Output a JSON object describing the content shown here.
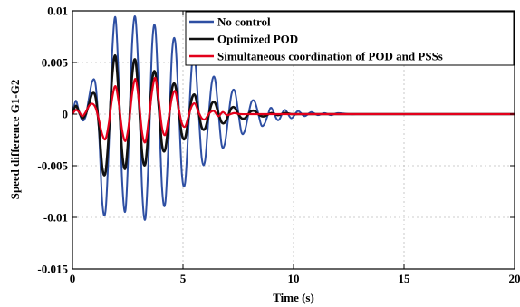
{
  "chart_data": {
    "type": "line",
    "title": "",
    "xlabel": "Time (s)",
    "ylabel": "Speed difference G1-G2",
    "xlim": [
      0,
      20
    ],
    "ylim": [
      -0.015,
      0.01
    ],
    "x_ticks": [
      0,
      5,
      10,
      15,
      20
    ],
    "x_tick_labels": [
      "0",
      "5",
      "10",
      "15",
      "20"
    ],
    "y_ticks": [
      0.01,
      0.005,
      0,
      -0.005,
      -0.01,
      -0.015
    ],
    "y_tick_labels": [
      "0.01",
      "0.005",
      "0",
      "-0.005",
      "-0.01",
      "-0.015"
    ],
    "grid": true,
    "legend_position": "top-right",
    "series": [
      {
        "name": "No control",
        "color": "#2e4fa3",
        "x": [
          0.0,
          0.15,
          0.3,
          0.45,
          0.6,
          0.75,
          0.9,
          1.05,
          1.2,
          1.35,
          1.5,
          1.65,
          1.8,
          1.95,
          2.1,
          2.25,
          2.4,
          2.55,
          2.7,
          2.85,
          3.0,
          3.15,
          3.3,
          3.45,
          3.6,
          3.75,
          3.9,
          4.05,
          4.2,
          4.35,
          4.5,
          4.65,
          4.8,
          4.95,
          5.1,
          5.25,
          5.4,
          5.55,
          5.7,
          5.85,
          6.0,
          6.15,
          6.3,
          6.45,
          6.6,
          6.75,
          6.9,
          7.05,
          7.2,
          7.35,
          7.5,
          7.65,
          7.8,
          7.95,
          8.1,
          8.25,
          8.4,
          8.55,
          8.7,
          8.85,
          9.0,
          9.3,
          9.6,
          9.9,
          10.2,
          10.5,
          10.8,
          11.1,
          11.4,
          11.7,
          12.0,
          12.5,
          13.0,
          13.5,
          14.0,
          15.0,
          16.0,
          17.0,
          18.0,
          19.0,
          20.0
        ],
        "values": [
          0,
          0.0013,
          0.0002,
          -0.0006,
          -0.0002,
          0.0016,
          0.0032,
          0.0028,
          -0.0017,
          -0.0086,
          -0.0093,
          -0.0028,
          0.0061,
          0.0093,
          0.0028,
          -0.0066,
          -0.0093,
          -0.0025,
          0.0069,
          0.0093,
          0.0032,
          -0.0073,
          -0.0101,
          -0.0038,
          0.0065,
          0.0083,
          0.0014,
          -0.0071,
          -0.0086,
          -0.0025,
          0.0058,
          0.007,
          0.0012,
          -0.0058,
          -0.0066,
          -0.0012,
          0.0047,
          0.0052,
          0.0005,
          -0.0043,
          -0.0045,
          -0.0005,
          0.003,
          0.0034,
          0.0003,
          -0.003,
          -0.0028,
          -0.0003,
          0.002,
          0.0022,
          0.0002,
          -0.0018,
          -0.0016,
          -0.0001,
          0.0012,
          0.0012,
          0.0001,
          -0.0011,
          -0.0009,
          0.0,
          0.0006,
          -0.0006,
          0.0004,
          -0.0004,
          0.0003,
          -0.0002,
          0.0002,
          -0.0001,
          0.0001,
          -0.0001,
          0.0001,
          0.0,
          0.0,
          0.0,
          0.0,
          0.0,
          0.0,
          0.0,
          0.0,
          0.0,
          0.0
        ]
      },
      {
        "name": "Optimized POD",
        "color": "#111111",
        "x": [
          0.0,
          0.15,
          0.3,
          0.45,
          0.6,
          0.75,
          0.9,
          1.05,
          1.2,
          1.35,
          1.5,
          1.65,
          1.8,
          1.95,
          2.1,
          2.25,
          2.4,
          2.55,
          2.7,
          2.85,
          3.0,
          3.15,
          3.3,
          3.45,
          3.6,
          3.75,
          3.9,
          4.05,
          4.2,
          4.35,
          4.5,
          4.65,
          4.8,
          4.95,
          5.1,
          5.25,
          5.4,
          5.55,
          5.7,
          5.85,
          6.0,
          6.15,
          6.3,
          6.45,
          6.6,
          6.75,
          6.9,
          7.05,
          7.2,
          7.35,
          7.5,
          7.65,
          7.8,
          7.95,
          8.1,
          8.25,
          8.4,
          8.55,
          8.7,
          9.0,
          9.3,
          9.6,
          9.9,
          10.2,
          10.5,
          11.0,
          11.5,
          12.0,
          13.0,
          14.0,
          16.0,
          18.0,
          20.0
        ],
        "values": [
          0,
          0.0008,
          0.0002,
          -0.0004,
          0.0,
          0.001,
          0.002,
          0.0016,
          -0.0012,
          -0.0052,
          -0.0056,
          -0.0017,
          0.0038,
          0.0056,
          0.0016,
          -0.0038,
          -0.0052,
          -0.0015,
          0.0038,
          0.0052,
          0.0014,
          -0.0038,
          -0.0048,
          -0.0012,
          0.0032,
          0.004,
          0.0008,
          -0.003,
          -0.0034,
          -0.0008,
          0.0024,
          0.0028,
          0.0005,
          -0.002,
          -0.0023,
          -0.0004,
          0.0015,
          0.0018,
          0.0002,
          -0.0013,
          -0.0014,
          -0.0002,
          0.001,
          0.0011,
          0.0001,
          -0.0008,
          -0.0008,
          -0.0001,
          0.0006,
          0.0006,
          0.0,
          -0.0004,
          -0.0004,
          0.0,
          0.0003,
          0.0003,
          0.0,
          -0.0002,
          -0.0002,
          0.0001,
          -0.0001,
          0.0001,
          0.0,
          0.0,
          0.0,
          0.0,
          0.0,
          0.0,
          0.0,
          0.0,
          0.0,
          0.0,
          0.0
        ]
      },
      {
        "name": "Simultaneous coordination of POD and PSSs",
        "color": "#e3001b",
        "x": [
          0.0,
          0.15,
          0.3,
          0.45,
          0.6,
          0.75,
          0.9,
          1.05,
          1.2,
          1.35,
          1.5,
          1.65,
          1.8,
          1.95,
          2.1,
          2.25,
          2.4,
          2.55,
          2.7,
          2.85,
          3.0,
          3.15,
          3.3,
          3.45,
          3.6,
          3.75,
          3.9,
          4.05,
          4.2,
          4.35,
          4.5,
          4.65,
          4.8,
          4.95,
          5.1,
          5.25,
          5.4,
          5.55,
          5.7,
          5.85,
          6.0,
          6.2,
          6.4,
          6.6,
          6.8,
          7.0,
          7.3,
          7.6,
          8.0,
          8.5,
          9.0,
          10.0,
          12.0,
          14.0,
          16.0,
          18.0,
          20.0
        ],
        "values": [
          0,
          0.0004,
          0.0002,
          -0.0002,
          0.0002,
          0.0008,
          0.001,
          0.0006,
          -0.0006,
          -0.002,
          -0.0024,
          -0.0008,
          0.0016,
          0.0027,
          0.001,
          -0.0016,
          -0.0026,
          -0.001,
          0.002,
          0.0034,
          0.0014,
          -0.0018,
          -0.0027,
          -0.0006,
          0.0022,
          0.0035,
          0.0014,
          -0.0013,
          -0.002,
          -0.0004,
          0.0016,
          0.0022,
          0.0006,
          -0.0009,
          -0.0012,
          -0.0002,
          0.0008,
          0.001,
          0.0002,
          -0.0004,
          -0.0005,
          0.0001,
          0.0003,
          -0.0002,
          0.0002,
          -0.0001,
          0.0001,
          0.0,
          0.0,
          0.0,
          0.0,
          0.0,
          0.0,
          0.0,
          0.0,
          0.0,
          0.0
        ]
      }
    ]
  }
}
